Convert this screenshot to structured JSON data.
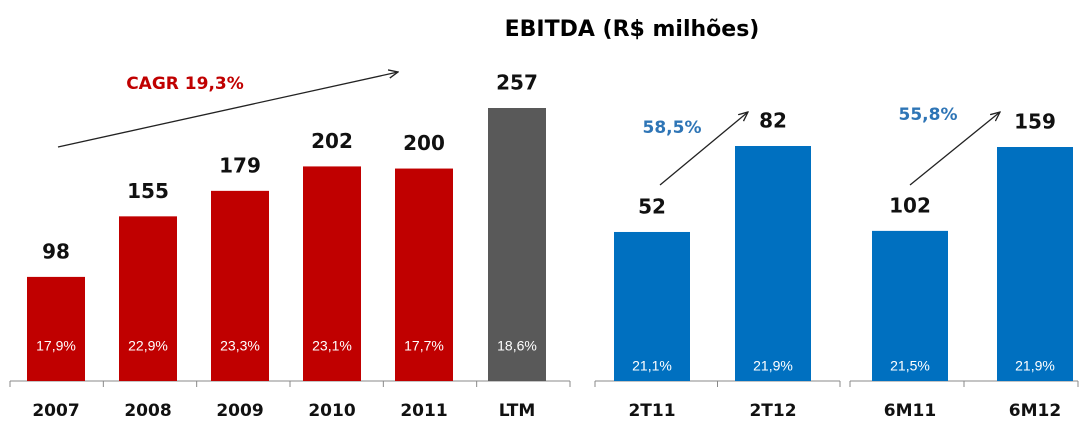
{
  "chart_data": [
    {
      "type": "bar",
      "title": "EBITDA (R$ milhões)",
      "annotation": "CAGR 19,3%",
      "categories": [
        "2007",
        "2008",
        "2009",
        "2010",
        "2011",
        "LTM"
      ],
      "values": [
        98,
        155,
        179,
        202,
        200,
        257
      ],
      "margin_labels": [
        "17,9%",
        "22,9%",
        "23,3%",
        "23,1%",
        "17,7%",
        "18,6%"
      ],
      "colors": [
        "#c00000",
        "#c00000",
        "#c00000",
        "#c00000",
        "#c00000",
        "#595959"
      ],
      "annotation_color": "#c00000"
    },
    {
      "type": "bar",
      "annotation": "58,5%",
      "categories": [
        "2T11",
        "2T12"
      ],
      "values": [
        52,
        82
      ],
      "margin_labels": [
        "21,1%",
        "21,9%"
      ],
      "colors": [
        "#0070c0",
        "#0070c0"
      ],
      "annotation_color": "#2e75b6"
    },
    {
      "type": "bar",
      "annotation": "55,8%",
      "categories": [
        "6M11",
        "6M12"
      ],
      "values": [
        102,
        159
      ],
      "margin_labels": [
        "21,5%",
        "21,9%"
      ],
      "colors": [
        "#0070c0",
        "#0070c0"
      ],
      "annotation_color": "#2e75b6"
    }
  ]
}
